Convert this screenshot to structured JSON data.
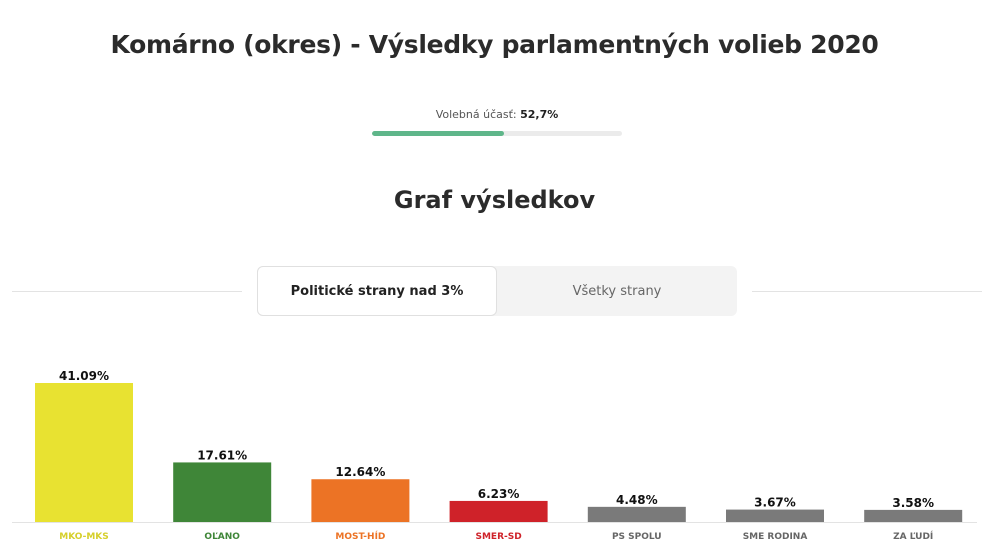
{
  "header": {
    "title": "Komárno (okres) - Výsledky parlamentných volieb 2020"
  },
  "turnout": {
    "label": "Volebná účasť:",
    "value_text": "52,7%",
    "value": 52.7,
    "color": "#5fb68a"
  },
  "section": {
    "title": "Graf výsledkov"
  },
  "tabs": [
    {
      "label": "Politické strany nad 3%",
      "active": true
    },
    {
      "label": "Všetky strany",
      "active": false
    }
  ],
  "chart_data": {
    "type": "bar",
    "categories": [
      "MKO-MKS",
      "OĽANO",
      "MOST-HÍD",
      "SMER-SD",
      "PS SPOLU",
      "SME RODINA",
      "ZA ĽUDÍ"
    ],
    "values": [
      41.09,
      17.61,
      12.64,
      6.23,
      4.48,
      3.67,
      3.58
    ],
    "value_labels": [
      "41.09%",
      "17.61%",
      "12.64%",
      "6.23%",
      "4.48%",
      "3.67%",
      "3.58%"
    ],
    "bar_colors": [
      "#e8e231",
      "#3f8638",
      "#ec7325",
      "#cf2229",
      "#7a7a7a",
      "#7a7a7a",
      "#7a7a7a"
    ],
    "label_colors": [
      "#d6cf2a",
      "#3f8638",
      "#ec7325",
      "#cf2229",
      "#666666",
      "#666666",
      "#666666"
    ],
    "title": "",
    "xlabel": "",
    "ylabel": ""
  }
}
